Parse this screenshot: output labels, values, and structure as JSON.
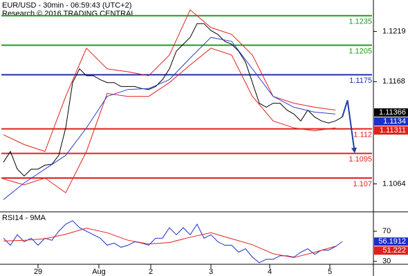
{
  "chart_data": [
    {
      "type": "line",
      "title": "EUR/USD - 30min - 06:59:43 (UTC+2)",
      "subtitle": "Research © 2016 TRADING CENTRAL",
      "xlim": [
        0,
        108
      ],
      "ylim": [
        1.1037,
        1.1251
      ],
      "yticks": [
        1.1219,
        1.1168,
        1.1064
      ],
      "x": [
        1,
        3,
        5,
        7,
        9,
        11,
        13,
        15,
        17,
        19,
        21,
        23,
        25,
        27,
        29,
        31,
        33,
        35,
        37,
        39,
        41,
        43,
        45,
        47,
        49,
        51,
        53,
        55,
        57,
        59,
        61,
        63,
        65,
        67,
        69,
        71,
        73,
        75,
        77,
        79,
        81,
        83,
        85,
        87,
        89,
        91,
        93,
        95,
        97,
        99
      ],
      "series": [
        {
          "color": "#000000",
          "values": [
            1.1086,
            1.1097,
            1.1079,
            1.1072,
            1.1079,
            1.1079,
            1.1083,
            1.1084,
            1.1093,
            1.1121,
            1.1167,
            1.1181,
            1.1174,
            1.1174,
            1.117,
            1.1167,
            1.1167,
            1.1163,
            1.1163,
            1.1163,
            1.1161,
            1.116,
            1.1163,
            1.117,
            1.1181,
            1.1199,
            1.1206,
            1.1213,
            1.1227,
            1.1227,
            1.122,
            1.1216,
            1.1209,
            1.1206,
            1.1199,
            1.1188,
            1.1167,
            1.1146,
            1.1142,
            1.1146,
            1.1146,
            1.1139,
            1.1135,
            1.1128,
            1.1139,
            1.1132,
            1.1128,
            1.1126,
            1.1128,
            1.1132
          ]
        },
        {
          "color": "#e0201c",
          "x": [
            1,
            7,
            13,
            19,
            25,
            31,
            37,
            43,
            49,
            55,
            61,
            67,
            73,
            79,
            85,
            91,
            97
          ],
          "values": [
            1.1114,
            1.1104,
            1.1097,
            1.1153,
            1.1202,
            1.1181,
            1.1178,
            1.1174,
            1.1195,
            1.1241,
            1.1223,
            1.1216,
            1.1195,
            1.1153,
            1.1146,
            1.1142,
            1.1139
          ]
        },
        {
          "color": "#e0201c",
          "x": [
            1,
            7,
            13,
            19,
            25,
            31,
            37,
            43,
            49,
            55,
            61,
            67,
            73,
            79,
            85,
            91,
            97
          ],
          "values": [
            1.1069,
            1.1063,
            1.107,
            1.1055,
            1.1097,
            1.1156,
            1.1153,
            1.1153,
            1.1167,
            1.1185,
            1.1202,
            1.1195,
            1.1153,
            1.1128,
            1.1121,
            1.1118,
            1.1121
          ]
        },
        {
          "color": "#2b3fd0",
          "x": [
            1,
            7,
            13,
            19,
            25,
            31,
            37,
            43,
            49,
            55,
            61,
            67,
            73,
            79,
            85,
            91,
            97
          ],
          "values": [
            1.1048,
            1.1065,
            1.1079,
            1.1093,
            1.1121,
            1.1153,
            1.116,
            1.1161,
            1.117,
            1.1192,
            1.1213,
            1.1209,
            1.1181,
            1.1153,
            1.1142,
            1.1137,
            1.1135
          ]
        },
        {
          "color": "#1f3fa0",
          "arrow": true,
          "x": [
            99,
            100.5,
            102.5
          ],
          "values": [
            1.1132,
            1.1149,
            1.1098
          ]
        }
      ],
      "levels": [
        {
          "value": 1.1235,
          "color": "#1f9a1f"
        },
        {
          "value": 1.1205,
          "color": "#1f9a1f"
        },
        {
          "value": 1.1175,
          "color": "#1c2fa8"
        },
        {
          "value": 1.112,
          "color": "#e0201c"
        },
        {
          "value": 1.1095,
          "color": "#e0201c"
        },
        {
          "value": 1.107,
          "color": "#e0201c"
        }
      ],
      "price_tags": [
        {
          "value": 1.11366,
          "color": "#000000"
        },
        {
          "value": 1.1134,
          "color": "#1c2fc8"
        },
        {
          "value": 1.11311,
          "color": "#e0201c"
        }
      ]
    },
    {
      "type": "line",
      "title": "RSI14 - 9MA",
      "xlim": [
        0,
        108
      ],
      "ylim": [
        27,
        93
      ],
      "yticks": [
        70,
        30
      ],
      "x": [
        1,
        3,
        5,
        7,
        9,
        11,
        13,
        15,
        17,
        19,
        21,
        23,
        25,
        27,
        29,
        31,
        33,
        35,
        37,
        39,
        41,
        43,
        45,
        47,
        49,
        51,
        53,
        55,
        57,
        59,
        61,
        63,
        65,
        67,
        69,
        71,
        73,
        75,
        77,
        79,
        81,
        83,
        85,
        87,
        89,
        91,
        93,
        95,
        97,
        99
      ],
      "xticks": [
        {
          "value": 11,
          "label": "29"
        },
        {
          "value": 28.6,
          "label": "Aug"
        },
        {
          "value": 43.6,
          "label": "2"
        },
        {
          "value": 61,
          "label": "3"
        },
        {
          "value": 78,
          "label": "4"
        },
        {
          "value": 95.4,
          "label": "5"
        }
      ],
      "series": [
        {
          "color": "#1c2fc8",
          "values": [
            60.7,
            51.4,
            65.3,
            56.0,
            60.7,
            51.4,
            60.7,
            57.9,
            70,
            79.3,
            84.0,
            74.7,
            70,
            65.3,
            60.7,
            51.4,
            54.2,
            48.6,
            51.4,
            56.0,
            54.2,
            51.4,
            60.7,
            60.7,
            74.7,
            65.3,
            74.7,
            65.3,
            79.3,
            60.7,
            65.3,
            56.0,
            51.4,
            51.4,
            42.1,
            46.7,
            35.6,
            28.1,
            32.8,
            32.8,
            37.4,
            37.4,
            35.6,
            42.1,
            46.7,
            39.3,
            44.9,
            44.9,
            49.5,
            56.2
          ]
        },
        {
          "color": "#e0201c",
          "x": [
            1,
            7,
            13,
            19,
            25,
            31,
            37,
            43,
            49,
            55,
            61,
            67,
            73,
            79,
            85,
            91,
            97
          ],
          "values": [
            57,
            58,
            60,
            66,
            74,
            68,
            58,
            53,
            55,
            62,
            68,
            60,
            52,
            40,
            35,
            42,
            50
          ]
        }
      ],
      "price_tags": [
        {
          "value": 56.1912,
          "color": "#1c2fc8"
        },
        {
          "value": 51.222,
          "color": "#e0201c"
        }
      ]
    }
  ]
}
